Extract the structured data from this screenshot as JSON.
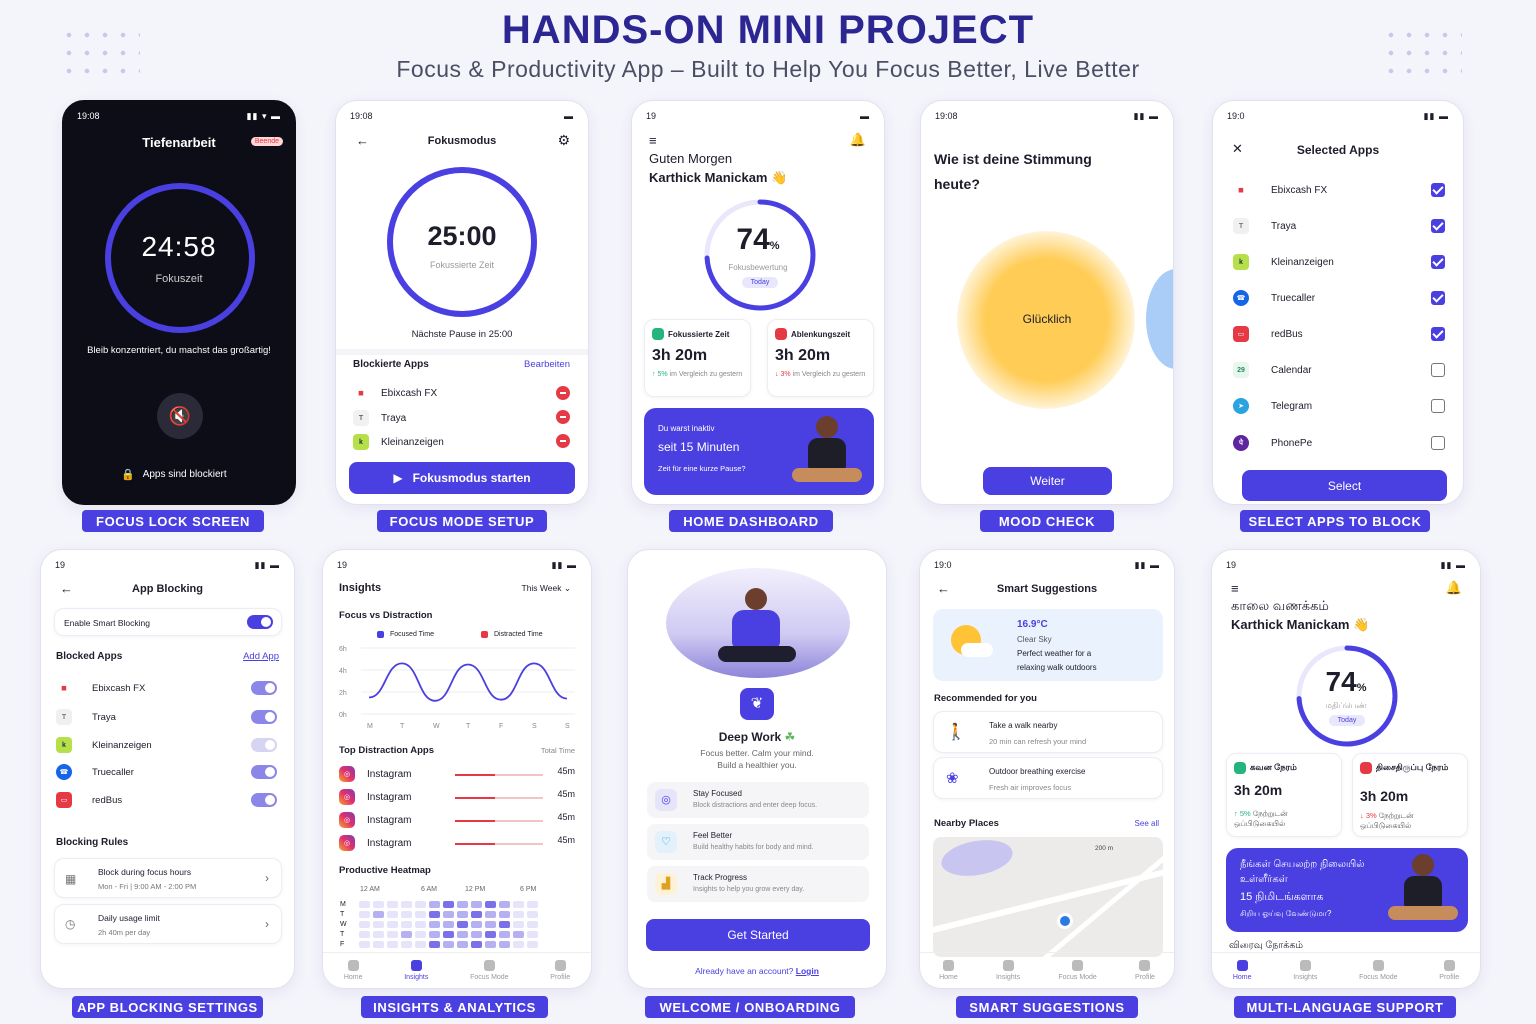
{
  "header": {
    "title": "HANDS-ON MINI PROJECT",
    "subtitle": "Focus & Productivity App – Built to Help You Focus Better, Live Better"
  },
  "labels": [
    "FOCUS LOCK SCREEN",
    "FOCUS MODE SETUP",
    "HOME DASHBOARD",
    "MOOD CHECK",
    "SELECT APPS TO BLOCK",
    "APP BLOCKING SETTINGS",
    "INSIGHTS & ANALYTICS",
    "WELCOME / ONBOARDING",
    "SMART SUGGESTIONS",
    "MULTI-LANGUAGE SUPPORT"
  ],
  "lock": {
    "time": "19:08",
    "title": "Tiefenarbeit",
    "badge": "Beende",
    "timer": "24:58",
    "timer_label": "Fokuszeit",
    "message": "Bleib konzentriert, du machst das großartig!",
    "blocked": "Apps sind blockiert",
    "progress": 0.99
  },
  "setup": {
    "time": "19:08",
    "title": "Fokusmodus",
    "timer": "25:00",
    "timer_label": "Fokussierte Zeit",
    "next_pause": "Nächste Pause in 25:00",
    "section": "Blockierte Apps",
    "edit": "Bearbeiten",
    "apps": [
      "Ebixcash FX",
      "Traya",
      "Kleinanzeigen"
    ],
    "start": "Fokusmodus starten"
  },
  "home": {
    "time": "19",
    "greeting": "Guten Morgen",
    "name": "Karthick Manickam",
    "score": "74",
    "pct": "%",
    "score_label": "Fokusbewertung",
    "today": "Today",
    "score_value": 0.74,
    "stat1": {
      "title": "Fokussierte Zeit",
      "value": "3h 20m",
      "delta": "5%",
      "note": "im Vergleich zu gestern"
    },
    "stat2": {
      "title": "Ablenkungszeit",
      "value": "3h 20m",
      "delta": "3%",
      "note": "im Vergleich zu gestern"
    },
    "banner": {
      "line1": "Du warst inaktiv",
      "line2": "seit 15 Minuten",
      "line3": "Zeit für eine kurze Pause?"
    }
  },
  "mood": {
    "time": "19:08",
    "question1": "Wie ist deine Stimmung",
    "question2": "heute?",
    "mood": "Glücklich",
    "button": "Weiter"
  },
  "select": {
    "time": "19:0",
    "title": "Selected Apps",
    "apps": [
      {
        "name": "Ebixcash FX",
        "on": true
      },
      {
        "name": "Traya",
        "on": true
      },
      {
        "name": "Kleinanzeigen",
        "on": true
      },
      {
        "name": "Truecaller",
        "on": true
      },
      {
        "name": "redBus",
        "on": true
      },
      {
        "name": "Calendar",
        "on": false
      },
      {
        "name": "Telegram",
        "on": false
      },
      {
        "name": "PhonePe",
        "on": false
      }
    ],
    "calendar_day": "29",
    "button": "Select"
  },
  "blocking": {
    "time": "19",
    "title": "App Blocking",
    "smart": "Enable Smart Blocking",
    "blocked": "Blocked Apps",
    "add": "Add App",
    "apps": [
      "Ebixcash FX",
      "Traya",
      "Kleinanzeigen",
      "Truecaller",
      "redBus"
    ],
    "rules_title": "Blocking Rules",
    "rule1": {
      "title": "Block during focus hours",
      "sub": "Mon - Fri | 9:00 AM - 2:00 PM"
    },
    "rule2": {
      "title": "Daily usage limit",
      "sub": "2h 40m per day"
    }
  },
  "insights": {
    "time": "19",
    "title": "Insights",
    "range": "This Week",
    "chart_title": "Focus vs Distraction",
    "legend1": "Focused Time",
    "legend2": "Distracted Time",
    "top": "Top Distraction Apps",
    "total": "Total Time",
    "apps": [
      {
        "name": "Instagram",
        "time": "45m"
      },
      {
        "name": "Instagram",
        "time": "45m"
      },
      {
        "name": "Instagram",
        "time": "45m"
      },
      {
        "name": "Instagram",
        "time": "45m"
      }
    ],
    "heatmap": "Productive Heatmap",
    "hm_cols": [
      "12 AM",
      "6 AM",
      "12 PM",
      "6 PM"
    ],
    "hm_rows": [
      "M",
      "T",
      "W",
      "T",
      "F"
    ],
    "chart_data": {
      "type": "line",
      "x": [
        "M",
        "T",
        "W",
        "T",
        "F",
        "S",
        "S"
      ],
      "yticks": [
        "6h",
        "4h",
        "2h",
        "0h"
      ],
      "ylim": [
        0,
        6
      ],
      "series": [
        {
          "name": "Focused Time",
          "values": [
            1.5,
            4.6,
            1.2,
            4.5,
            1.3,
            4.6,
            1.4
          ]
        }
      ],
      "legend": "top"
    }
  },
  "welcome": {
    "title": "Deep Work",
    "sub1": "Focus better. Calm your mind.",
    "sub2": "Build a healthier you.",
    "f1": {
      "t": "Stay Focused",
      "d": "Block distractions and enter deep focus."
    },
    "f2": {
      "t": "Feel Better",
      "d": "Build healthy habits for body and mind."
    },
    "f3": {
      "t": "Track Progress",
      "d": "Insights to help you grow every day."
    },
    "button": "Get Started",
    "account": "Already have an account?",
    "login": "Login"
  },
  "smart": {
    "time": "19:0",
    "title": "Smart Suggestions",
    "temp": "16.9°C",
    "sky": "Clear Sky",
    "desc1": "Perfect weather for a",
    "desc2": "relaxing walk outdoors",
    "rec": "Recommended for you",
    "r1": {
      "t": "Take a walk nearby",
      "d": "20 min can refresh your mind"
    },
    "r2": {
      "t": "Outdoor breathing exercise",
      "d": "Fresh air improves focus"
    },
    "nearby": "Nearby Places",
    "see": "See all",
    "map_scale": "200 m"
  },
  "multi": {
    "time": "19",
    "greeting": "காலை வணக்கம்",
    "name": "Karthick Manickam",
    "score": "74",
    "pct": "%",
    "score_label": "மதிப்பெண்",
    "today": "Today",
    "s1": {
      "t": "கவன நேரம்",
      "v": "3h 20m",
      "d": "5%",
      "n": "நேற்றுடன் ஒப்பிடுகையில்"
    },
    "s2": {
      "t": "திசைதிருப்பு நேரம்",
      "v": "3h 20m",
      "d": "3%",
      "n": "நேற்றுடன் ஒப்பிடுகையில்"
    },
    "b1": "நீங்கள் செயலற்ற நிலையில்",
    "b2": "உள்ளீர்கள்",
    "b3": "15 நிமிடங்களாக",
    "b4": "சிறிய ஓய்வு வேண்டுமா?",
    "bottom": "விரைவு நோக்கம்"
  },
  "nav": {
    "home": "Home",
    "insights": "Insights",
    "focus": "Focus Mode",
    "profile": "Profile"
  }
}
